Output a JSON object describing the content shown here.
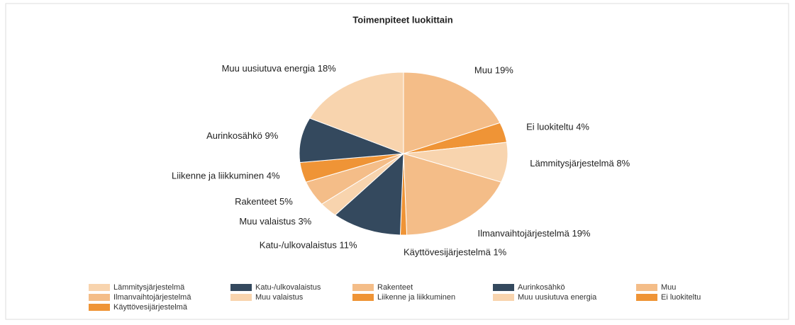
{
  "chart_data": {
    "type": "pie",
    "title": "Toimenpiteet luokittain",
    "categories": [
      "Muu",
      "Ei luokiteltu",
      "Lämmitysjärjestelmä",
      "Ilmanvaihtojärjestelmä",
      "Käyttövesijärjestelmä",
      "Katu-/ulkovalaistus",
      "Muu valaistus",
      "Rakenteet",
      "Liikenne ja liikkuminen",
      "Aurinkosähkö",
      "Muu uusiutuva energia"
    ],
    "values": [
      19,
      4,
      8,
      19,
      1,
      11,
      3,
      5,
      4,
      9,
      18
    ],
    "value_labels": [
      "19%",
      "4%",
      "8%",
      "19%",
      "1%",
      "11%",
      "3%",
      "5%",
      "4%",
      "9%",
      "18%"
    ],
    "colors": [
      "#f4bd88",
      "#ef9436",
      "#f8d4ae",
      "#f4bd88",
      "#ef9436",
      "#34495e",
      "#f8d4ae",
      "#f4bd88",
      "#ef9436",
      "#34495e",
      "#f8d4ae"
    ],
    "legend": [
      "Lämmitysjärjestelmä",
      "Katu-/ulkovalaistus",
      "Rakenteet",
      "Aurinkosähkö",
      "Muu",
      "Ilmanvaihtojärjestelmä",
      "Muu valaistus",
      "Liikenne ja liikkuminen",
      "Muu uusiutuva energia",
      "Ei luokiteltu",
      "Käyttövesijärjestelmä"
    ]
  }
}
